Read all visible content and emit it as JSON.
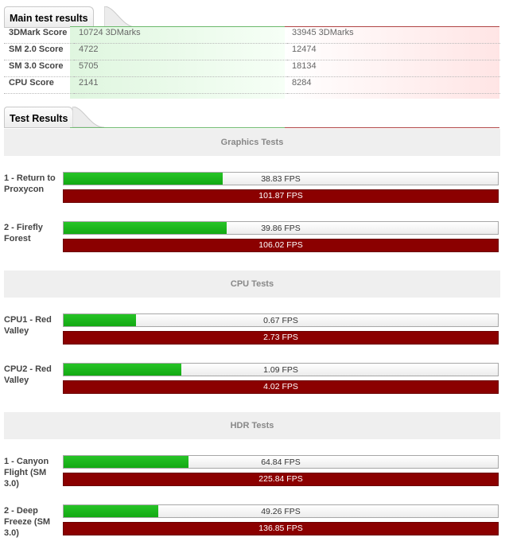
{
  "main": {
    "tab_title": "Main test results",
    "rows": [
      {
        "label": "3DMark Score",
        "a": "10724 3DMarks",
        "b": "33945 3DMarks"
      },
      {
        "label": "SM 2.0 Score",
        "a": "4722",
        "b": "12474"
      },
      {
        "label": "SM 3.0 Score",
        "a": "5705",
        "b": "18134"
      },
      {
        "label": "CPU Score",
        "a": "2141",
        "b": "8284"
      }
    ]
  },
  "results": {
    "tab_title": "Test Results"
  },
  "sections": [
    {
      "title": "Graphics Tests",
      "tests": [
        {
          "label": "1 - Return to Proxycon",
          "a": 38.83,
          "b": 101.87,
          "a_text": "38.83 FPS",
          "b_text": "101.87 FPS"
        },
        {
          "label": "2 - Firefly Forest",
          "a": 39.86,
          "b": 106.02,
          "a_text": "39.86 FPS",
          "b_text": "106.02 FPS"
        }
      ]
    },
    {
      "title": "CPU Tests",
      "tests": [
        {
          "label": "CPU1 - Red Valley",
          "a": 0.67,
          "b": 2.73,
          "a_text": "0.67 FPS",
          "b_text": "2.73 FPS"
        },
        {
          "label": "CPU2 - Red Valley",
          "a": 1.09,
          "b": 4.02,
          "a_text": "1.09 FPS",
          "b_text": "4.02 FPS"
        }
      ]
    },
    {
      "title": "HDR Tests",
      "tests": [
        {
          "label": "1 - Canyon Flight (SM 3.0)",
          "a": 64.84,
          "b": 225.84,
          "a_text": "64.84 FPS",
          "b_text": "225.84 FPS"
        },
        {
          "label": "2 - Deep Freeze (SM 3.0)",
          "a": 49.26,
          "b": 136.85,
          "a_text": "49.26 FPS",
          "b_text": "136.85 FPS"
        }
      ]
    }
  ],
  "colors": {
    "green": "#1ab51a",
    "red": "#8b0000"
  },
  "chart_data": {
    "type": "bar",
    "categories": [
      "1 - Return to Proxycon",
      "2 - Firefly Forest",
      "CPU1 - Red Valley",
      "CPU2 - Red Valley",
      "1 - Canyon Flight (SM 3.0)",
      "2 - Deep Freeze (SM 3.0)"
    ],
    "series": [
      {
        "values": [
          38.83,
          39.86,
          0.67,
          1.09,
          64.84,
          49.26
        ]
      },
      {
        "values": [
          101.87,
          106.02,
          2.73,
          4.02,
          225.84,
          136.85
        ]
      }
    ]
  }
}
